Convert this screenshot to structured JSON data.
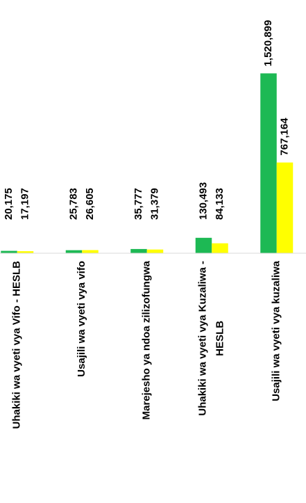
{
  "chart_data": {
    "type": "bar",
    "categories": [
      "Uhakiki wa vyeti vya Vifo - HESLB",
      "Usajili wa vyeti vya vifo",
      "Marejesho  ya ndoa zilizofungwa",
      [
        "Uhakiki wa vyeti vya Kuzaliwa -",
        "HESLB"
      ],
      "Usajili wa vyeti vya kuzaliwa"
    ],
    "series": [
      {
        "color": "#1db954",
        "values": [
          20175,
          25783,
          35777,
          130493,
          1520899
        ],
        "value_labels": [
          "20,175",
          "25,783",
          "35,777",
          "130,493",
          "1,520,899"
        ]
      },
      {
        "color": "#ffff00",
        "values": [
          17197,
          26605,
          31379,
          84133,
          767164
        ],
        "value_labels": [
          "17,197",
          "26,605",
          "31,379",
          "84,133",
          "767,164"
        ]
      }
    ],
    "ylim": [
      0,
      1600000
    ]
  }
}
